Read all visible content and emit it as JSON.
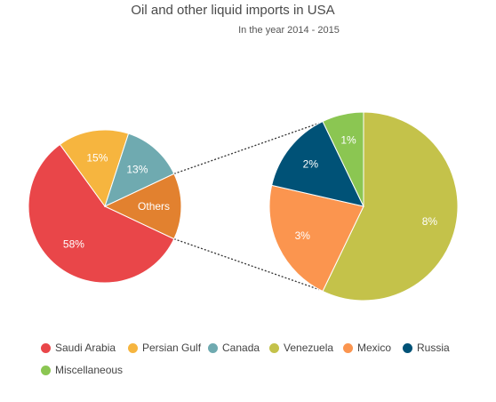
{
  "chart_data": {
    "type": "pie",
    "title": "Oil and other liquid imports in USA",
    "subtitle": "In the year 2014 - 2015",
    "main_pie": {
      "slices": [
        {
          "name": "Saudi Arabia",
          "value": 58,
          "label": "58%",
          "color": "#E94649"
        },
        {
          "name": "Persian Gulf",
          "value": 15,
          "label": "15%",
          "color": "#F6B53F"
        },
        {
          "name": "Canada",
          "value": 13,
          "label": "13%",
          "color": "#6FAAB0"
        },
        {
          "name": "Others",
          "value": 14,
          "label": "Others",
          "color": "#E2812F"
        }
      ]
    },
    "detail_pie": {
      "of": "Others",
      "slices": [
        {
          "name": "Venezuela",
          "value": 8,
          "label": "8%",
          "color": "#C4C24A"
        },
        {
          "name": "Mexico",
          "value": 3,
          "label": "3%",
          "color": "#FB954F"
        },
        {
          "name": "Russia",
          "value": 2,
          "label": "2%",
          "color": "#005277"
        },
        {
          "name": "Miscellaneous",
          "value": 1,
          "label": "1%",
          "color": "#8BC652"
        }
      ]
    },
    "legend": {
      "placement": "bottom",
      "items": [
        {
          "name": "Saudi Arabia",
          "color": "#E94649"
        },
        {
          "name": "Persian Gulf",
          "color": "#F6B53F"
        },
        {
          "name": "Canada",
          "color": "#6FAAB0"
        },
        {
          "name": "Venezuela",
          "color": "#C4C24A"
        },
        {
          "name": "Mexico",
          "color": "#FB954F"
        },
        {
          "name": "Russia",
          "color": "#005277"
        },
        {
          "name": "Miscellaneous",
          "color": "#8BC652"
        }
      ]
    }
  }
}
